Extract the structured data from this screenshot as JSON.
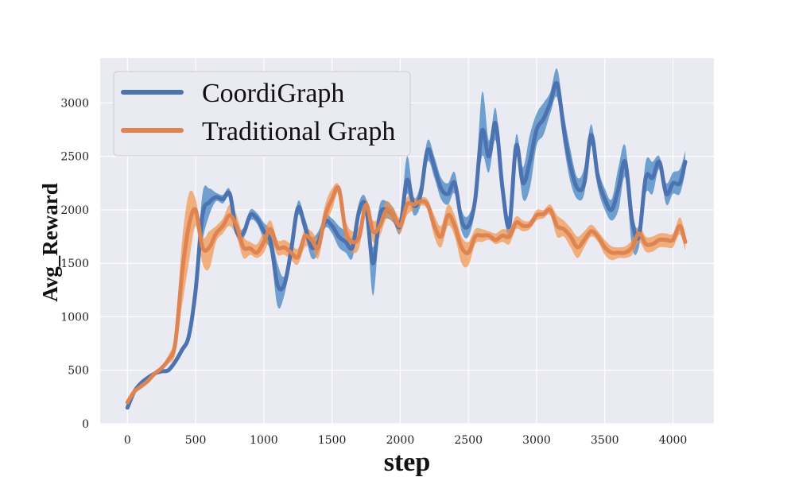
{
  "chart_data": {
    "type": "line",
    "title": "",
    "xlabel": "step",
    "ylabel": "Avg_Reward",
    "xlim": [
      -200,
      4300
    ],
    "ylim": [
      0,
      3420
    ],
    "xticks": [
      0,
      500,
      1000,
      1500,
      2000,
      2500,
      3000,
      3500,
      4000
    ],
    "yticks": [
      0,
      500,
      1000,
      1500,
      2000,
      2500,
      3000
    ],
    "grid": true,
    "legend_position": "top-left",
    "series": [
      {
        "name": "CoordiGraph",
        "line_color": "#4c72b0",
        "band_color": "#3a7fc0",
        "x": [
          0,
          50,
          100,
          150,
          200,
          250,
          300,
          350,
          400,
          450,
          500,
          550,
          600,
          650,
          700,
          750,
          800,
          850,
          900,
          950,
          1000,
          1050,
          1100,
          1150,
          1200,
          1250,
          1300,
          1350,
          1400,
          1450,
          1500,
          1550,
          1600,
          1650,
          1700,
          1750,
          1800,
          1850,
          1900,
          1950,
          2000,
          2050,
          2100,
          2150,
          2200,
          2250,
          2300,
          2350,
          2400,
          2450,
          2500,
          2550,
          2600,
          2650,
          2700,
          2750,
          2800,
          2850,
          2900,
          2950,
          3000,
          3050,
          3100,
          3150,
          3200,
          3250,
          3300,
          3350,
          3400,
          3450,
          3500,
          3550,
          3600,
          3650,
          3700,
          3750,
          3800,
          3850,
          3900,
          3950,
          4000,
          4050,
          4090
        ],
        "y": [
          150,
          300,
          380,
          430,
          470,
          490,
          500,
          580,
          690,
          820,
          1250,
          1950,
          2070,
          2120,
          2100,
          2150,
          1800,
          1780,
          1950,
          1920,
          1800,
          1700,
          1300,
          1300,
          1620,
          2020,
          1850,
          1650,
          1700,
          1890,
          1850,
          1750,
          1700,
          1650,
          2000,
          2030,
          1500,
          1950,
          2000,
          1950,
          1850,
          2280,
          2040,
          2150,
          2560,
          2400,
          2200,
          2150,
          2250,
          1900,
          1850,
          2100,
          2740,
          2500,
          2810,
          2200,
          1850,
          2600,
          2250,
          2450,
          2750,
          2850,
          3000,
          3180,
          2750,
          2400,
          2200,
          2250,
          2700,
          2300,
          2100,
          2000,
          2200,
          2450,
          1900,
          1750,
          2300,
          2300,
          2450,
          2150,
          2250,
          2250,
          2450
        ],
        "upper": [
          150,
          320,
          400,
          450,
          480,
          500,
          510,
          600,
          720,
          860,
          1350,
          2150,
          2200,
          2160,
          2140,
          2190,
          1850,
          1830,
          2000,
          1970,
          1880,
          1800,
          1500,
          1380,
          1680,
          2080,
          1930,
          1750,
          1800,
          1950,
          1920,
          1850,
          1800,
          1750,
          2080,
          2100,
          1650,
          2050,
          2080,
          2020,
          1930,
          2500,
          2120,
          2250,
          2650,
          2500,
          2300,
          2250,
          2350,
          2000,
          1950,
          2200,
          3100,
          2650,
          2950,
          2300,
          1950,
          2700,
          2400,
          2700,
          2900,
          3000,
          3100,
          3320,
          2900,
          2550,
          2300,
          2400,
          2800,
          2400,
          2200,
          2100,
          2400,
          2600,
          2000,
          1850,
          2450,
          2450,
          2500,
          2250,
          2350,
          2380,
          2550
        ],
        "lower": [
          140,
          280,
          360,
          410,
          460,
          480,
          490,
          560,
          660,
          780,
          1150,
          1700,
          1950,
          2080,
          2060,
          2110,
          1750,
          1730,
          1900,
          1870,
          1720,
          1600,
          1100,
          1200,
          1550,
          1950,
          1780,
          1550,
          1600,
          1830,
          1780,
          1650,
          1600,
          1550,
          1920,
          1950,
          1200,
          1850,
          1920,
          1880,
          1780,
          2150,
          1950,
          2050,
          2450,
          2300,
          2100,
          2050,
          2150,
          1800,
          1750,
          2000,
          2500,
          2350,
          2650,
          2100,
          1750,
          2500,
          2100,
          2200,
          2600,
          2700,
          2900,
          3050,
          2600,
          2250,
          2100,
          2150,
          2600,
          2200,
          2000,
          1900,
          2000,
          2300,
          1650,
          1650,
          2150,
          2150,
          2380,
          2050,
          2150,
          2150,
          2350
        ]
      },
      {
        "name": "Traditional Graph",
        "line_color": "#dd8452",
        "band_color": "#f2944a",
        "x": [
          0,
          50,
          100,
          150,
          200,
          250,
          300,
          350,
          400,
          450,
          500,
          550,
          600,
          650,
          700,
          750,
          800,
          850,
          900,
          950,
          1000,
          1050,
          1100,
          1150,
          1200,
          1250,
          1300,
          1350,
          1400,
          1450,
          1500,
          1550,
          1600,
          1650,
          1700,
          1750,
          1800,
          1850,
          1900,
          1950,
          2000,
          2050,
          2100,
          2150,
          2200,
          2250,
          2300,
          2350,
          2400,
          2450,
          2500,
          2550,
          2600,
          2650,
          2700,
          2750,
          2800,
          2850,
          2900,
          2950,
          3000,
          3050,
          3100,
          3150,
          3200,
          3250,
          3300,
          3350,
          3400,
          3450,
          3500,
          3550,
          3600,
          3650,
          3700,
          3750,
          3800,
          3850,
          3900,
          3950,
          4000,
          4050,
          4090
        ],
        "y": [
          200,
          300,
          350,
          400,
          470,
          520,
          600,
          750,
          1400,
          1850,
          2000,
          1650,
          1650,
          1780,
          1850,
          1950,
          1850,
          1650,
          1640,
          1600,
          1700,
          1820,
          1650,
          1650,
          1600,
          1560,
          1750,
          1720,
          1650,
          1950,
          2100,
          2200,
          1800,
          1700,
          1750,
          2050,
          1800,
          1850,
          2000,
          1950,
          1850,
          2050,
          2050,
          2080,
          2050,
          1850,
          1750,
          1950,
          1850,
          1650,
          1600,
          1750,
          1760,
          1760,
          1720,
          1760,
          1750,
          1880,
          1850,
          1860,
          1950,
          1960,
          2000,
          1850,
          1820,
          1750,
          1650,
          1720,
          1800,
          1750,
          1650,
          1600,
          1600,
          1600,
          1650,
          1780,
          1680,
          1680,
          1720,
          1720,
          1720,
          1850,
          1700
        ],
        "upper": [
          210,
          320,
          370,
          420,
          490,
          540,
          640,
          850,
          1700,
          2150,
          2100,
          1750,
          1800,
          1850,
          1920,
          2050,
          1950,
          1750,
          1700,
          1680,
          1800,
          1900,
          1720,
          1720,
          1680,
          1640,
          1820,
          1800,
          1750,
          2050,
          2200,
          2230,
          1900,
          1800,
          1850,
          2100,
          1900,
          1950,
          2080,
          2020,
          1930,
          2120,
          2100,
          2120,
          2100,
          1950,
          1850,
          2050,
          1950,
          1750,
          1700,
          1820,
          1820,
          1800,
          1780,
          1820,
          1820,
          1940,
          1900,
          1900,
          2000,
          2000,
          2050,
          1950,
          1900,
          1830,
          1750,
          1800,
          1860,
          1800,
          1720,
          1660,
          1650,
          1660,
          1720,
          1850,
          1750,
          1750,
          1780,
          1780,
          1780,
          1930,
          1780
        ],
        "lower": [
          190,
          280,
          330,
          380,
          450,
          500,
          560,
          650,
          1100,
          1500,
          1850,
          1500,
          1450,
          1700,
          1780,
          1850,
          1750,
          1550,
          1580,
          1550,
          1600,
          1720,
          1580,
          1580,
          1530,
          1490,
          1650,
          1640,
          1550,
          1850,
          2000,
          2150,
          1700,
          1600,
          1650,
          1980,
          1700,
          1750,
          1920,
          1880,
          1780,
          1950,
          2000,
          2040,
          2000,
          1750,
          1650,
          1850,
          1750,
          1500,
          1480,
          1680,
          1700,
          1720,
          1680,
          1700,
          1680,
          1820,
          1800,
          1820,
          1900,
          1920,
          1950,
          1750,
          1750,
          1650,
          1550,
          1650,
          1750,
          1700,
          1580,
          1530,
          1550,
          1550,
          1580,
          1700,
          1610,
          1610,
          1650,
          1650,
          1650,
          1770,
          1620
        ]
      }
    ]
  }
}
